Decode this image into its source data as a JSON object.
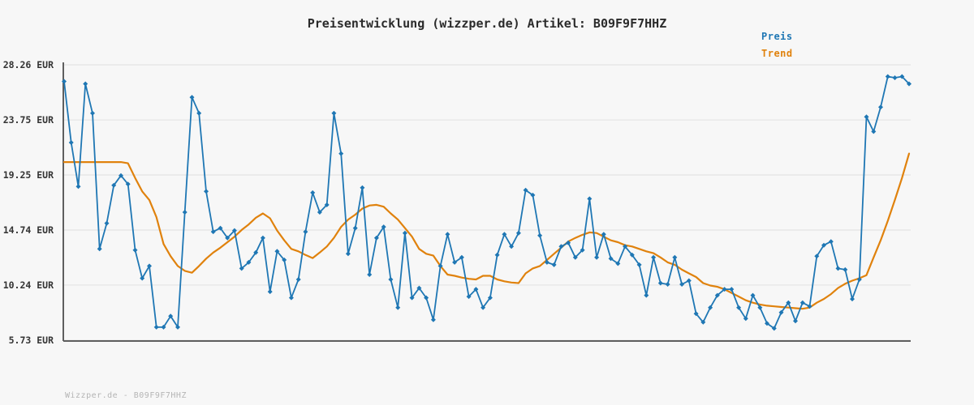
{
  "page": {
    "title": "Preisentwicklung (wizzper.de) Artikel: B09F9F7HHZ",
    "watermark": "Wizzper.de - B09F9F7HHZ",
    "background_color": "#f7f7f7"
  },
  "legend": {
    "position": "top-right",
    "items": [
      {
        "label": "Preis",
        "color": "#1f77b4"
      },
      {
        "label": "Trend",
        "color": "#e0820d"
      }
    ]
  },
  "chart_data": {
    "type": "line",
    "title": "Preisentwicklung (wizzper.de) Artikel: B09F9F7HHZ",
    "grid": "horizontal",
    "legend_position": "top-right",
    "x_axis": {
      "label": "",
      "tick_labels_visible": false,
      "num_points": 120
    },
    "y_axis": {
      "unit": "EUR",
      "min": 5.73,
      "max": 28.26,
      "tick_values": [
        28.26,
        23.75,
        19.25,
        14.74,
        10.24,
        5.73
      ],
      "tick_labels": [
        "28.26 EUR",
        "23.75 EUR",
        "19.25 EUR",
        "14.74 EUR",
        "10.24 EUR",
        "5.73 EUR"
      ]
    },
    "colors": {
      "grid_line": "#e4e4e4",
      "axis_spine": "#5f5f5f",
      "tick_label": "#333333"
    },
    "series": [
      {
        "name": "Preis",
        "color": "#1f77b4",
        "marker": "diamond",
        "line_width": 1.8,
        "values": [
          26.9,
          21.9,
          18.3,
          26.7,
          24.3,
          13.2,
          15.3,
          18.4,
          19.2,
          18.5,
          13.1,
          10.8,
          11.8,
          6.8,
          6.8,
          7.7,
          6.8,
          16.2,
          25.6,
          24.3,
          17.9,
          14.6,
          14.9,
          14.1,
          14.7,
          11.6,
          12.1,
          12.9,
          14.1,
          9.7,
          13.0,
          12.3,
          9.2,
          10.7,
          14.6,
          17.8,
          16.2,
          16.8,
          24.3,
          21.0,
          12.8,
          14.9,
          18.2,
          11.1,
          14.1,
          15.0,
          10.7,
          8.4,
          14.5,
          9.2,
          10.0,
          9.2,
          7.4,
          11.8,
          14.4,
          12.1,
          12.5,
          9.3,
          9.9,
          8.4,
          9.2,
          12.7,
          14.4,
          13.4,
          14.5,
          18.0,
          17.6,
          14.3,
          12.1,
          11.9,
          13.4,
          13.7,
          12.5,
          13.1,
          17.3,
          12.5,
          14.4,
          12.4,
          12.0,
          13.4,
          12.7,
          11.9,
          9.4,
          12.5,
          10.4,
          10.3,
          12.5,
          10.3,
          10.6,
          7.9,
          7.2,
          8.4,
          9.4,
          9.9,
          9.9,
          8.4,
          7.5,
          9.4,
          8.4,
          7.1,
          6.7,
          8.0,
          8.8,
          7.3,
          8.8,
          8.5,
          12.6,
          13.5,
          13.8,
          11.6,
          11.5,
          9.1,
          10.7,
          24.0,
          22.8,
          24.8,
          27.3,
          27.2,
          27.3,
          26.7
        ]
      },
      {
        "name": "Trend",
        "color": "#e0820d",
        "marker": "none",
        "line_width": 2.2,
        "values": [
          20.3,
          20.3,
          20.3,
          20.3,
          20.3,
          20.3,
          20.3,
          20.3,
          20.3,
          20.2,
          19.0,
          17.9,
          17.2,
          15.8,
          13.6,
          12.6,
          11.8,
          11.4,
          11.25,
          11.8,
          12.4,
          12.9,
          13.3,
          13.75,
          14.2,
          14.75,
          15.2,
          15.75,
          16.1,
          15.7,
          14.7,
          13.9,
          13.2,
          13.0,
          12.7,
          12.45,
          12.9,
          13.4,
          14.1,
          15.0,
          15.6,
          16.0,
          16.5,
          16.75,
          16.8,
          16.65,
          16.1,
          15.6,
          14.9,
          14.2,
          13.2,
          12.8,
          12.65,
          11.8,
          11.1,
          11.0,
          10.85,
          10.75,
          10.7,
          11.0,
          11.0,
          10.7,
          10.55,
          10.45,
          10.4,
          11.2,
          11.6,
          11.8,
          12.3,
          12.8,
          13.3,
          13.8,
          14.1,
          14.35,
          14.55,
          14.5,
          14.2,
          13.9,
          13.75,
          13.5,
          13.4,
          13.2,
          13.0,
          12.85,
          12.5,
          12.1,
          11.9,
          11.5,
          11.2,
          10.9,
          10.4,
          10.2,
          10.1,
          9.9,
          9.6,
          9.3,
          9.0,
          8.8,
          8.65,
          8.55,
          8.5,
          8.45,
          8.4,
          8.35,
          8.3,
          8.4,
          8.8,
          9.1,
          9.5,
          10.0,
          10.35,
          10.6,
          10.8,
          11.05,
          12.5,
          13.9,
          15.5,
          17.2,
          19.0,
          21.0
        ]
      }
    ]
  }
}
